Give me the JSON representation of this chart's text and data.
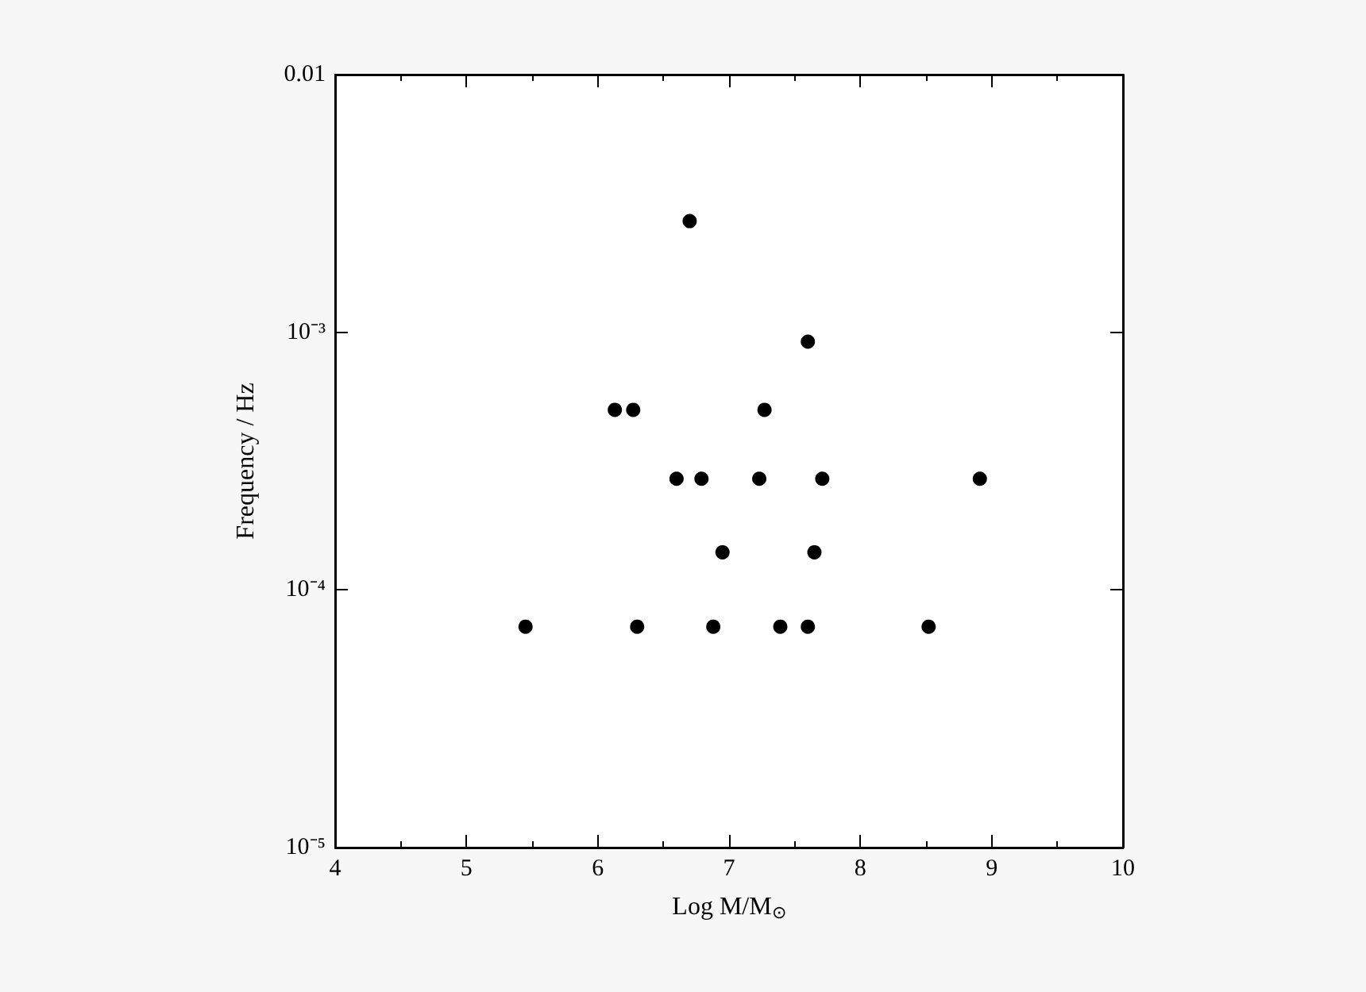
{
  "chart_data": {
    "type": "scatter",
    "xlabel": "Log M/M$_{⊙}$",
    "ylabel": "Frequency / Hz",
    "x": [
      5.45,
      6.3,
      6.88,
      7.39,
      7.6,
      8.52,
      6.13,
      6.27,
      7.27,
      6.6,
      6.79,
      7.23,
      7.71,
      8.91,
      6.95,
      7.65,
      6.7,
      7.6
    ],
    "values": [
      7.2e-05,
      7.2e-05,
      7.2e-05,
      7.2e-05,
      7.2e-05,
      7.2e-05,
      0.0005,
      0.0005,
      0.0005,
      0.00027,
      0.00027,
      0.00027,
      0.00027,
      0.00027,
      0.00014,
      0.00014,
      0.0027,
      0.00092
    ],
    "color": "#000000",
    "marker": "circle",
    "xlim": [
      4,
      10
    ],
    "xticks": [
      4,
      5,
      6,
      7,
      8,
      9,
      10
    ],
    "ylim": [
      1e-05,
      0.01
    ],
    "log": "y",
    "yticks": [
      {
        "value": 1e-05,
        "label": "10⁻⁵"
      },
      {
        "value": 0.0001,
        "label": "10⁻⁴"
      },
      {
        "value": 0.001,
        "label": "10⁻³"
      },
      "0.01"
    ],
    "grid": false
  }
}
